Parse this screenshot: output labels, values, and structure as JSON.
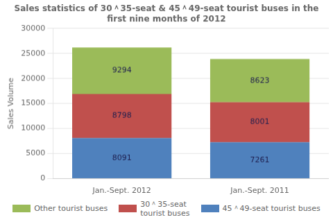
{
  "chart_data": {
    "type": "bar",
    "title": "Sales statistics of 30＾35-seat & 45＾49-seat tourist buses in the first nine months of 2012",
    "ylabel": "Sales Volume",
    "categories": [
      "Jan.-Sept. 2012",
      "Jan.-Sept. 2011"
    ],
    "series": [
      {
        "name": "45＾49-seat tourist buses",
        "color": "#4F81BD",
        "values": [
          8091,
          7261
        ]
      },
      {
        "name": "30＾35-seat\ntourist buses",
        "color": "#C0504D",
        "values": [
          8798,
          8001
        ]
      },
      {
        "name": "Other tourist buses",
        "color": "#9BBB59",
        "values": [
          9294,
          8623
        ]
      }
    ],
    "stacked": true,
    "data_labels": true,
    "ylim": [
      0,
      30000
    ],
    "yticks": [
      0,
      5000,
      10000,
      15000,
      20000,
      25000,
      30000
    ],
    "grid": true,
    "legend": "bottom"
  }
}
